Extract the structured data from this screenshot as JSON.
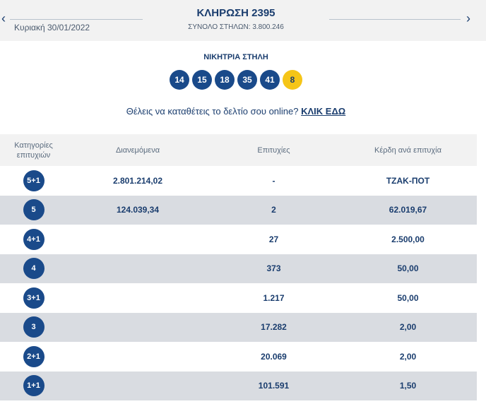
{
  "header": {
    "date": "Κυριακή 30/01/2022",
    "title": "ΚΛΗΡΩΣΗ 2395",
    "subtitle": "ΣΥΝΟΛΟ ΣΤΗΛΩΝ: 3.800.246",
    "prev_icon": "chevron-left-icon",
    "next_icon": "chevron-right-icon"
  },
  "winning": {
    "label": "ΝΙΚΗΤΡΙΑ ΣΤΗΛΗ",
    "numbers": [
      "14",
      "15",
      "18",
      "35",
      "41"
    ],
    "joker": "8"
  },
  "cta": {
    "text": "Θέλεις να καταθέτεις το δελτίο σου online?",
    "link": "ΚΛΙΚ ΕΔΩ"
  },
  "table": {
    "headers": {
      "category_line1": "Κατηγορίες",
      "category_line2": "επιτυχιών",
      "distributed": "Διανεμόμενα",
      "winners": "Επιτυχίες",
      "prize": "Κέρδη ανά επιτυχία"
    },
    "rows": [
      {
        "category": "5+1",
        "distributed": "2.801.214,02",
        "winners": "-",
        "prize": "ΤΖΑΚ-ΠΟΤ"
      },
      {
        "category": "5",
        "distributed": "124.039,34",
        "winners": "2",
        "prize": "62.019,67"
      },
      {
        "category": "4+1",
        "distributed": "",
        "winners": "27",
        "prize": "2.500,00"
      },
      {
        "category": "4",
        "distributed": "",
        "winners": "373",
        "prize": "50,00"
      },
      {
        "category": "3+1",
        "distributed": "",
        "winners": "1.217",
        "prize": "50,00"
      },
      {
        "category": "3",
        "distributed": "",
        "winners": "17.282",
        "prize": "2,00"
      },
      {
        "category": "2+1",
        "distributed": "",
        "winners": "20.069",
        "prize": "2,00"
      },
      {
        "category": "1+1",
        "distributed": "",
        "winners": "101.591",
        "prize": "1,50"
      }
    ]
  },
  "colors": {
    "primary": "#1a4a8a",
    "joker": "#f5c518",
    "stripe": "#d9dce1",
    "header_bg": "#f2f2f2"
  }
}
